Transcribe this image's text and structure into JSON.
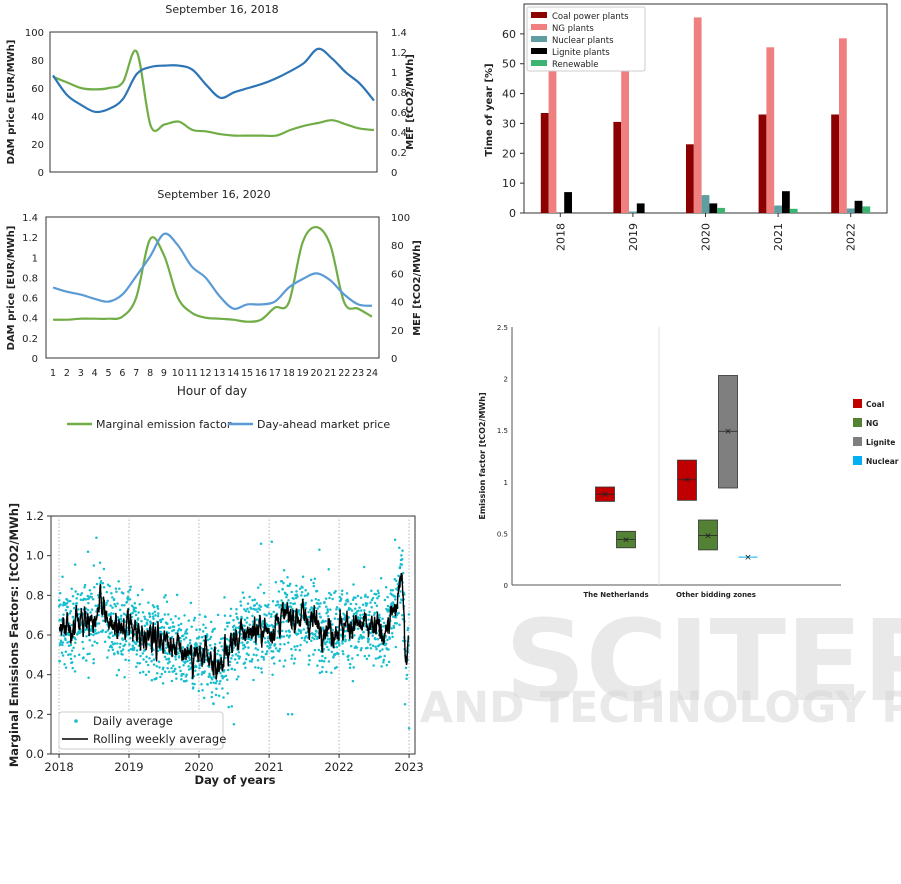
{
  "watermark": {
    "brand": "SCITEPRESS",
    "tagline": "SCIENCE AND TECHNOLOGY PUBLICATIONS"
  },
  "chart_data": [
    {
      "id": "mef_2018",
      "type": "line",
      "title": "September 16, 2018",
      "xlabel": "",
      "ylabel": "DAM price [EUR/MWh]",
      "y2label": "MEF [tCO2/MWh]",
      "ylim": [
        0,
        100
      ],
      "y2lim": [
        0,
        1.4
      ],
      "y_ticks": [
        0,
        20,
        40,
        60,
        80,
        100
      ],
      "y2_ticks": [
        "0",
        "0.2",
        "0.4",
        "0.6",
        "0.8",
        "1",
        "1.2",
        "1.4"
      ],
      "x": [
        1,
        2,
        3,
        4,
        5,
        6,
        7,
        8,
        9,
        10,
        11,
        12,
        13,
        14,
        15,
        16,
        17,
        18,
        19,
        20,
        21,
        22,
        23,
        24
      ],
      "series": [
        {
          "name": "Marginal emission factor",
          "axis": "y",
          "color": "#70ad47",
          "values": [
            68,
            64,
            60,
            59,
            60,
            64,
            86,
            33,
            34,
            36,
            30,
            29,
            27,
            26,
            26,
            26,
            26,
            30,
            33,
            35,
            37,
            34,
            31,
            30
          ]
        },
        {
          "name": "Day-ahead market price",
          "axis": "y",
          "color": "#2e75b6",
          "values": [
            69,
            55,
            48,
            43,
            45,
            52,
            70,
            75,
            76,
            76,
            73,
            62,
            53,
            57,
            60,
            63,
            67,
            72,
            78,
            88,
            81,
            71,
            63,
            51
          ]
        }
      ]
    },
    {
      "id": "mef_2020",
      "type": "line",
      "title": "September 16, 2020",
      "xlabel": "Hour of day",
      "ylabel": "DAM price [EUR/MWh]",
      "y2label": "MEF [tCO2/MWh]",
      "ylim": [
        0,
        1.4
      ],
      "y2lim": [
        0,
        100
      ],
      "y_ticks": [
        "0",
        "0.2",
        "0.4",
        "0.6",
        "0.8",
        "1",
        "1.2",
        "1.4"
      ],
      "y2_ticks": [
        0,
        20,
        40,
        60,
        80,
        100
      ],
      "x_ticks": [
        "1",
        "2",
        "3",
        "4",
        "5",
        "6",
        "7",
        "8",
        "9",
        "10",
        "11",
        "12",
        "13",
        "14",
        "15",
        "16",
        "17",
        "18",
        "19",
        "20",
        "21",
        "22",
        "23",
        "24"
      ],
      "x": [
        1,
        2,
        3,
        4,
        5,
        6,
        7,
        8,
        9,
        10,
        11,
        12,
        13,
        14,
        15,
        16,
        17,
        18,
        19,
        20,
        21,
        22,
        23,
        24
      ],
      "series": [
        {
          "name": "Marginal emission factor",
          "axis": "y",
          "color": "#70ad47",
          "values": [
            0.38,
            0.38,
            0.39,
            0.39,
            0.39,
            0.41,
            0.6,
            1.18,
            1.02,
            0.6,
            0.45,
            0.4,
            0.39,
            0.38,
            0.36,
            0.38,
            0.5,
            0.55,
            1.15,
            1.3,
            1.12,
            0.55,
            0.49,
            0.41
          ]
        },
        {
          "name": "Day-ahead market price",
          "axis": "y2",
          "color": "#5b9bd5",
          "values": [
            50,
            47,
            45,
            42,
            40,
            45,
            58,
            72,
            88,
            80,
            65,
            57,
            44,
            35,
            38,
            38,
            40,
            50,
            56,
            60,
            55,
            45,
            38,
            37
          ]
        }
      ],
      "legend": [
        {
          "name": "Marginal emission factor",
          "color": "#70ad47"
        },
        {
          "name": "Day-ahead market price",
          "color": "#5b9bd5"
        }
      ]
    },
    {
      "id": "time_of_year",
      "type": "bar",
      "title": "",
      "ylabel": "Time of year [%]",
      "ylim": [
        0,
        70
      ],
      "y_ticks": [
        0,
        10,
        20,
        30,
        40,
        50,
        60
      ],
      "categories": [
        "2018",
        "2019",
        "2020",
        "2021",
        "2022"
      ],
      "series": [
        {
          "name": "Coal power plants",
          "color": "#8b0000",
          "values": [
            33.5,
            30.5,
            23,
            33,
            33
          ]
        },
        {
          "name": "NG plants",
          "color": "#f08080",
          "values": [
            64,
            65,
            65.5,
            55.5,
            58.5
          ]
        },
        {
          "name": "Nuclear plants",
          "color": "#5f9ea0",
          "values": [
            0,
            0.5,
            6,
            2.5,
            1.5
          ]
        },
        {
          "name": "Lignite plants",
          "color": "#000000",
          "values": [
            7,
            3.2,
            3.2,
            7.3,
            4.1
          ]
        },
        {
          "name": "Renewable",
          "color": "#3cb371",
          "values": [
            0,
            0,
            1.7,
            1.4,
            2.2
          ]
        }
      ],
      "legend_position": "top-left"
    },
    {
      "id": "emission_factor_boxes",
      "type": "box",
      "ylabel": "Emission factor [tCO2/MWh]",
      "ylim": [
        0,
        2.5
      ],
      "y_ticks": [
        "0",
        "0.5",
        "1",
        "1.5",
        "2",
        "2.5"
      ],
      "categories": [
        "The Netherlands",
        "Other bidding zones"
      ],
      "boxes": [
        {
          "group": "The Netherlands",
          "fuel": "Coal",
          "color": "#c00000",
          "low": 0.81,
          "high": 0.95,
          "mean": 0.88
        },
        {
          "group": "The Netherlands",
          "fuel": "NG",
          "color": "#548235",
          "low": 0.36,
          "high": 0.52,
          "mean": 0.44
        },
        {
          "group": "Other bidding zones",
          "fuel": "Coal",
          "color": "#c00000",
          "low": 0.82,
          "high": 1.21,
          "mean": 1.02
        },
        {
          "group": "Other bidding zones",
          "fuel": "NG",
          "color": "#548235",
          "low": 0.34,
          "high": 0.63,
          "mean": 0.48
        },
        {
          "group": "Other bidding zones",
          "fuel": "Lignite",
          "color": "#7f7f7f",
          "low": 0.94,
          "high": 2.03,
          "mean": 1.49
        },
        {
          "group": "Other bidding zones",
          "fuel": "Nuclear",
          "color": "#00b0f0",
          "low": 0.27,
          "high": 0.27,
          "mean": 0.27
        }
      ],
      "legend": [
        {
          "name": "Coal",
          "color": "#c00000"
        },
        {
          "name": "NG",
          "color": "#548235"
        },
        {
          "name": "Lignite",
          "color": "#7f7f7f"
        },
        {
          "name": "Nuclear",
          "color": "#00b0f0"
        }
      ],
      "legend_position": "right"
    },
    {
      "id": "mef_daily",
      "type": "scatter",
      "xlabel": "Day of years",
      "ylabel": "Marginal Emissions Factors: [tCO2/MWh]",
      "ylim": [
        0,
        1.2
      ],
      "y_ticks": [
        "0.0",
        "0.2",
        "0.4",
        "0.6",
        "0.8",
        "1.0",
        "1.2"
      ],
      "x_ticks": [
        "2018",
        "2019",
        "2020",
        "2021",
        "2022",
        "2023"
      ],
      "xlim": [
        "2017-11-20",
        "2023-02-01"
      ],
      "grid": "vertical dotted at year boundaries",
      "series": [
        {
          "name": "Daily average",
          "color": "#17becf",
          "kind": "dots"
        },
        {
          "name": "Rolling weekly average",
          "color": "#000000",
          "kind": "line"
        }
      ],
      "weekly_profile": [
        [
          "2018-01-01",
          0.66
        ],
        [
          "2018-03-01",
          0.62
        ],
        [
          "2018-05-01",
          0.69
        ],
        [
          "2018-07-01",
          0.68
        ],
        [
          "2018-08-01",
          0.78
        ],
        [
          "2018-10-01",
          0.63
        ],
        [
          "2019-01-01",
          0.62
        ],
        [
          "2019-03-01",
          0.58
        ],
        [
          "2019-06-01",
          0.61
        ],
        [
          "2019-09-01",
          0.55
        ],
        [
          "2019-12-01",
          0.5
        ],
        [
          "2020-02-01",
          0.47
        ],
        [
          "2020-04-01",
          0.43
        ],
        [
          "2020-07-01",
          0.57
        ],
        [
          "2020-10-01",
          0.63
        ],
        [
          "2021-01-01",
          0.62
        ],
        [
          "2021-03-01",
          0.68
        ],
        [
          "2021-06-01",
          0.7
        ],
        [
          "2021-09-01",
          0.66
        ],
        [
          "2021-12-01",
          0.63
        ],
        [
          "2022-03-01",
          0.66
        ],
        [
          "2022-06-01",
          0.63
        ],
        [
          "2022-09-01",
          0.62
        ],
        [
          "2022-11-01",
          0.75
        ],
        [
          "2022-11-20",
          0.93
        ],
        [
          "2022-12-15",
          0.5
        ],
        [
          "2022-12-31",
          0.58
        ]
      ],
      "outlier_points": [
        [
          "2018-07-15",
          1.09
        ],
        [
          "2018-06-01",
          1.02
        ],
        [
          "2020-07-01",
          0.15
        ],
        [
          "2020-06-20",
          0.24
        ],
        [
          "2021-04-10",
          0.2
        ],
        [
          "2021-05-01",
          0.2
        ],
        [
          "2020-11-20",
          1.06
        ],
        [
          "2021-01-15",
          1.07
        ],
        [
          "2021-09-20",
          1.03
        ],
        [
          "2022-10-20",
          1.08
        ],
        [
          "2023-01-01",
          0.13
        ]
      ]
    }
  ]
}
